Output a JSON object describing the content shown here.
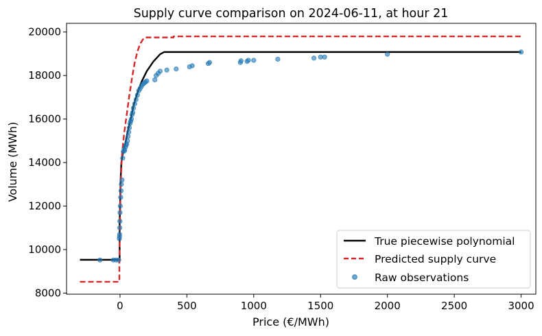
{
  "chart_data": {
    "type": "line",
    "title": "Supply curve comparison on 2024-06-11, at hour 21",
    "xlabel": "Price (€/MWh)",
    "ylabel": "Volume (MWh)",
    "xlim": [
      -400,
      3110
    ],
    "ylim": [
      7950,
      20400
    ],
    "xticks": [
      0,
      500,
      1000,
      1500,
      2000,
      2500,
      3000
    ],
    "yticks": [
      8000,
      10000,
      12000,
      14000,
      16000,
      18000,
      20000
    ],
    "grid": false,
    "legend_position": "lower-right",
    "colors": {
      "true_curve": "#000000",
      "predicted": "#d62728",
      "observations": "#1f77b4"
    },
    "series": [
      {
        "name": "True piecewise polynomial",
        "style": "solid",
        "x": [
          -300,
          -3,
          -3,
          2,
          5,
          10,
          20,
          40,
          60,
          80,
          100,
          130,
          160,
          200,
          250,
          300,
          330,
          3000
        ],
        "y": [
          9530,
          9530,
          11200,
          12500,
          13300,
          14000,
          14400,
          14900,
          15500,
          16000,
          16600,
          17200,
          17700,
          18200,
          18650,
          18980,
          19080,
          19080
        ]
      },
      {
        "name": "Predicted supply curve",
        "style": "dashed",
        "x": [
          -300,
          -5,
          -5,
          5,
          15,
          30,
          50,
          70,
          90,
          110,
          130,
          150,
          170,
          185,
          200,
          400,
          400,
          3000
        ],
        "y": [
          8520,
          8520,
          9500,
          13000,
          14400,
          15300,
          16200,
          17100,
          17900,
          18600,
          19100,
          19450,
          19650,
          19750,
          19750,
          19750,
          19800,
          19800
        ]
      },
      {
        "name": "Raw observations",
        "style": "scatter",
        "points": [
          [
            -150,
            9520
          ],
          [
            -50,
            9520
          ],
          [
            -30,
            9520
          ],
          [
            -10,
            9520
          ],
          [
            -5,
            10500
          ],
          [
            -4,
            10600
          ],
          [
            -3,
            10700
          ],
          [
            -2,
            11000
          ],
          [
            -1,
            11300
          ],
          [
            0,
            11700
          ],
          [
            2,
            12000
          ],
          [
            5,
            12400
          ],
          [
            8,
            12700
          ],
          [
            10,
            13000
          ],
          [
            15,
            13200
          ],
          [
            20,
            14200
          ],
          [
            25,
            14500
          ],
          [
            30,
            14600
          ],
          [
            35,
            14550
          ],
          [
            40,
            14700
          ],
          [
            45,
            14800
          ],
          [
            50,
            14850
          ],
          [
            55,
            15000
          ],
          [
            60,
            15200
          ],
          [
            65,
            15400
          ],
          [
            70,
            15600
          ],
          [
            75,
            15800
          ],
          [
            80,
            15900
          ],
          [
            85,
            16000
          ],
          [
            90,
            16200
          ],
          [
            95,
            16300
          ],
          [
            100,
            16500
          ],
          [
            110,
            16700
          ],
          [
            120,
            16900
          ],
          [
            130,
            17100
          ],
          [
            140,
            17300
          ],
          [
            150,
            17400
          ],
          [
            160,
            17500
          ],
          [
            170,
            17600
          ],
          [
            180,
            17650
          ],
          [
            190,
            17700
          ],
          [
            200,
            17750
          ],
          [
            260,
            17800
          ],
          [
            270,
            18000
          ],
          [
            285,
            18100
          ],
          [
            300,
            18200
          ],
          [
            350,
            18250
          ],
          [
            420,
            18300
          ],
          [
            520,
            18400
          ],
          [
            540,
            18450
          ],
          [
            660,
            18550
          ],
          [
            670,
            18600
          ],
          [
            900,
            18600
          ],
          [
            905,
            18680
          ],
          [
            950,
            18650
          ],
          [
            960,
            18700
          ],
          [
            1000,
            18700
          ],
          [
            1180,
            18750
          ],
          [
            1450,
            18800
          ],
          [
            1500,
            18850
          ],
          [
            1530,
            18850
          ],
          [
            2000,
            18980
          ],
          [
            3000,
            19080
          ]
        ]
      }
    ]
  }
}
